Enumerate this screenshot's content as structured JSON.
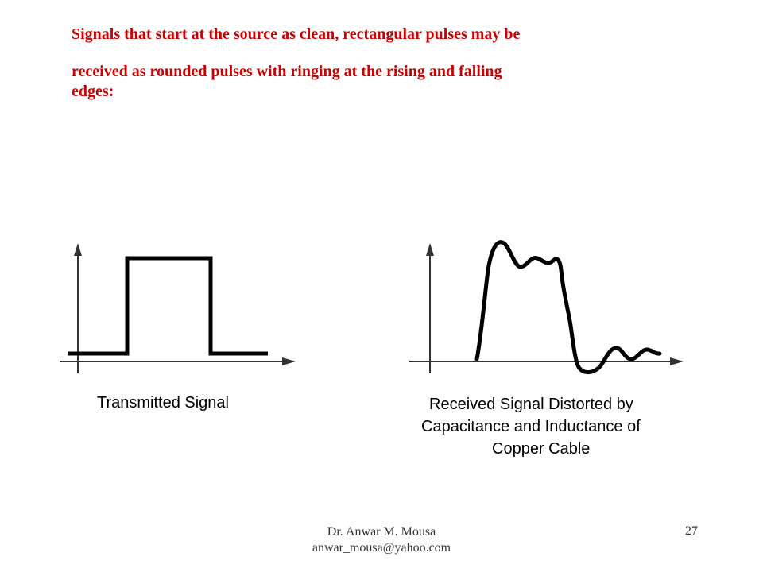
{
  "slide": {
    "text": {
      "line1": "Signals that start at the source as clean, rectangular pulses may be",
      "line2": "received as rounded pulses with ringing at the rising and falling",
      "line3": "edges:"
    }
  },
  "diagram": {
    "left_caption": "Transmitted Signal",
    "right_caption_lines": [
      "Received Signal Distorted by",
      "Capacitance and Inductance of",
      "Copper Cable"
    ]
  },
  "footer": {
    "author": "Dr. Anwar M. Mousa",
    "email": "anwar_mousa@yahoo.com",
    "page_number": "27"
  },
  "colors": {
    "heading": "#cc0000",
    "line": "#000000",
    "axis": "#333333"
  }
}
